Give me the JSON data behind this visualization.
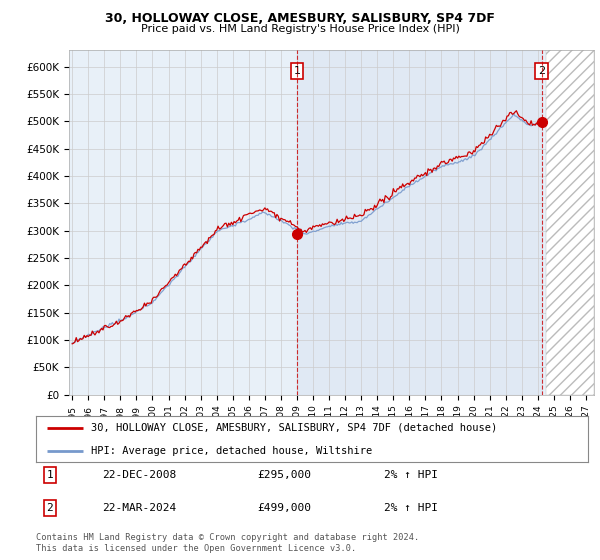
{
  "title": "30, HOLLOWAY CLOSE, AMESBURY, SALISBURY, SP4 7DF",
  "subtitle": "Price paid vs. HM Land Registry's House Price Index (HPI)",
  "ylim": [
    0,
    630000
  ],
  "yticks": [
    0,
    50000,
    100000,
    150000,
    200000,
    250000,
    300000,
    350000,
    400000,
    450000,
    500000,
    550000,
    600000
  ],
  "ytick_labels": [
    "£0",
    "£50K",
    "£100K",
    "£150K",
    "£200K",
    "£250K",
    "£300K",
    "£350K",
    "£400K",
    "£450K",
    "£500K",
    "£550K",
    "£600K"
  ],
  "xlim_start": 1994.8,
  "xlim_end": 2027.5,
  "sale1_x": 2009.0,
  "sale1_y": 295000,
  "sale1_label": "1",
  "sale2_x": 2024.25,
  "sale2_y": 499000,
  "sale2_label": "2",
  "hatch_start": 2024.5,
  "blue_fill_alpha": 0.12,
  "legend_line1": "30, HOLLOWAY CLOSE, AMESBURY, SALISBURY, SP4 7DF (detached house)",
  "legend_line2": "HPI: Average price, detached house, Wiltshire",
  "table_row1": [
    "1",
    "22-DEC-2008",
    "£295,000",
    "2% ↑ HPI"
  ],
  "table_row2": [
    "2",
    "22-MAR-2024",
    "£499,000",
    "2% ↑ HPI"
  ],
  "footnote": "Contains HM Land Registry data © Crown copyright and database right 2024.\nThis data is licensed under the Open Government Licence v3.0.",
  "line_color_red": "#cc0000",
  "line_color_blue": "#7799cc",
  "background_color": "#ffffff",
  "grid_color": "#cccccc",
  "plot_bg_color": "#e8f0f8"
}
